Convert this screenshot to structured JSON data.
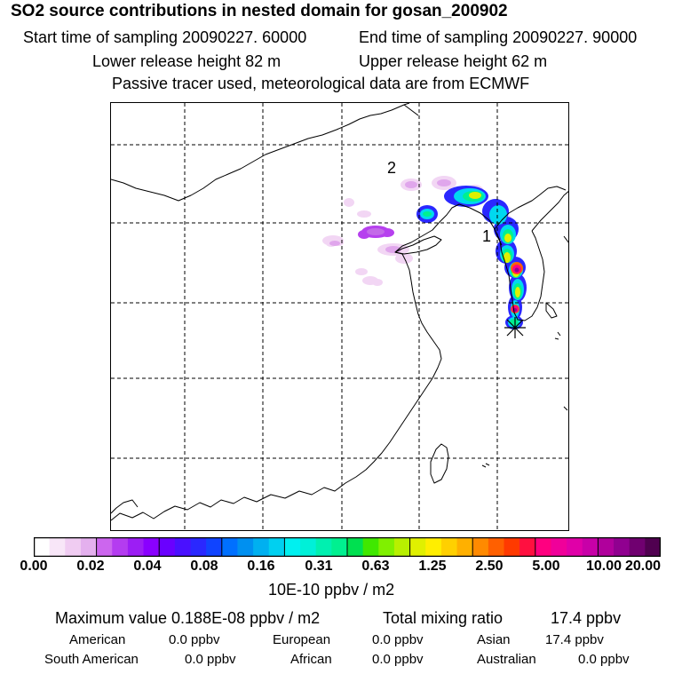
{
  "header": {
    "title": "SO2 source contributions in nested domain for gosan_200902",
    "start_time": "Start time of sampling 20090227. 60000",
    "end_time": "End time of sampling 20090227. 90000",
    "lower_height": "Lower release height   82 m",
    "upper_height": "Upper release height   62 m",
    "tracer_note": "Passive tracer used, meteorological data are from ECMWF"
  },
  "map": {
    "labels": {
      "label_1": "1",
      "label_2": "2"
    },
    "receptor_marker": "asterisk-marker",
    "colors": {
      "coast": "#000000",
      "grid": "#000000",
      "frame": "#000000"
    }
  },
  "legend": {
    "ticks": [
      "0.00",
      "0.02",
      "0.04",
      "0.08",
      "0.16",
      "0.31",
      "0.63",
      "1.25",
      "2.50",
      "5.00",
      "10.00",
      "20.00"
    ],
    "unit": "10E-10 ppbv / m2",
    "colors": [
      "#ffffff",
      "#f8e6f8",
      "#f0ccf2",
      "#e4b0ee",
      "#cc66ee",
      "#b43cf0",
      "#9c1ef4",
      "#8a00ff",
      "#6a00ff",
      "#4a10ff",
      "#2a28ff",
      "#1044ff",
      "#0070ff",
      "#0090f0",
      "#00b0f0",
      "#00d0f0",
      "#00f0f0",
      "#00f0d8",
      "#00f0b0",
      "#00f090",
      "#00e050",
      "#40e800",
      "#80f000",
      "#b8f000",
      "#e0f000",
      "#ffee00",
      "#ffd000",
      "#ffb000",
      "#ff8a00",
      "#ff6000",
      "#ff3a00",
      "#ff1040",
      "#ff0080",
      "#f0009a",
      "#e000a8",
      "#c800a8",
      "#b0009c",
      "#900090",
      "#700070",
      "#500050"
    ],
    "group_boundaries": [
      4,
      8,
      12,
      16,
      20,
      24,
      28,
      32,
      36
    ]
  },
  "stats": {
    "max_value": "Maximum value  0.188E-08 ppbv / m2",
    "total_label": "Total mixing ratio",
    "total_value": "17.4 ppbv",
    "american_label": "American",
    "american_value": "0.0 ppbv",
    "european_label": "European",
    "european_value": "0.0 ppbv",
    "asian_label": "Asian",
    "asian_value": "17.4 ppbv",
    "south_american_label": "South American",
    "south_american_value": "0.0 ppbv",
    "african_label": "African",
    "african_value": "0.0 ppbv",
    "australian_label": "Australian",
    "australian_value": "0.0 ppbv"
  }
}
